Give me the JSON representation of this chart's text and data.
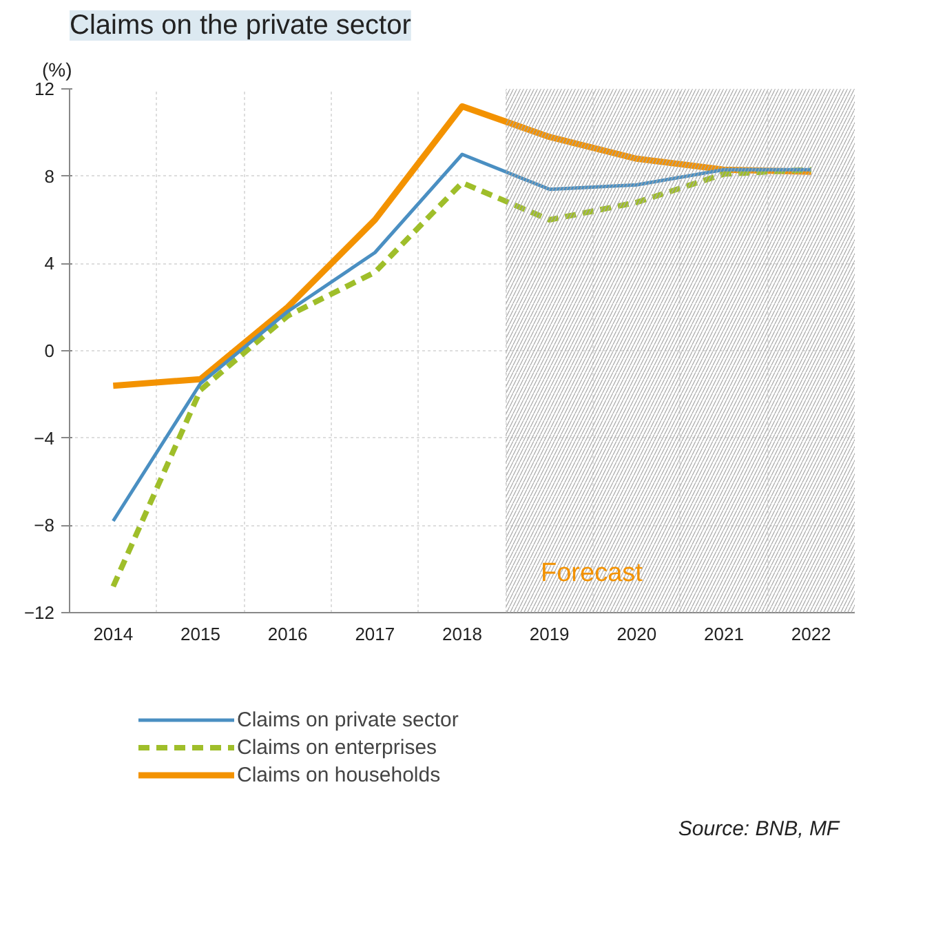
{
  "chart_data": {
    "type": "line",
    "title": "Claims on the private sector",
    "ylabel": "(%)",
    "x": [
      2014,
      2015,
      2016,
      2017,
      2018,
      2019,
      2020,
      2021,
      2022
    ],
    "xlim": [
      2013.5,
      2022.5
    ],
    "xticks": [
      2014,
      2015,
      2016,
      2017,
      2018,
      2019,
      2020,
      2021,
      2022
    ],
    "ylim": [
      -12,
      12
    ],
    "yticks": [
      -12,
      -8,
      -4,
      0,
      4,
      8,
      12
    ],
    "grid": true,
    "legend": "bottom",
    "series": [
      {
        "name": "Claims on private sector",
        "color": "#4a8fc2",
        "line_style": "solid",
        "values": [
          -7.8,
          -1.5,
          1.8,
          4.5,
          9.0,
          7.4,
          7.6,
          8.3,
          8.3
        ]
      },
      {
        "name": "Claims on enterprises",
        "color": "#9fbe2a",
        "line_style": "dashed",
        "values": [
          -10.8,
          -1.8,
          1.6,
          3.6,
          7.7,
          6.0,
          6.8,
          8.1,
          8.3
        ]
      },
      {
        "name": "Claims on households",
        "color": "#f39200",
        "line_style": "solid",
        "values": [
          -1.6,
          -1.3,
          2.0,
          6.0,
          11.2,
          9.8,
          8.8,
          8.3,
          8.2
        ]
      }
    ],
    "bands": [
      {
        "axis": "x",
        "from": 2018.5,
        "to": 2022.5,
        "label": "Forecast",
        "color": "#a6a6a6"
      }
    ],
    "annotations": [
      "Source: BNB, MF"
    ]
  }
}
